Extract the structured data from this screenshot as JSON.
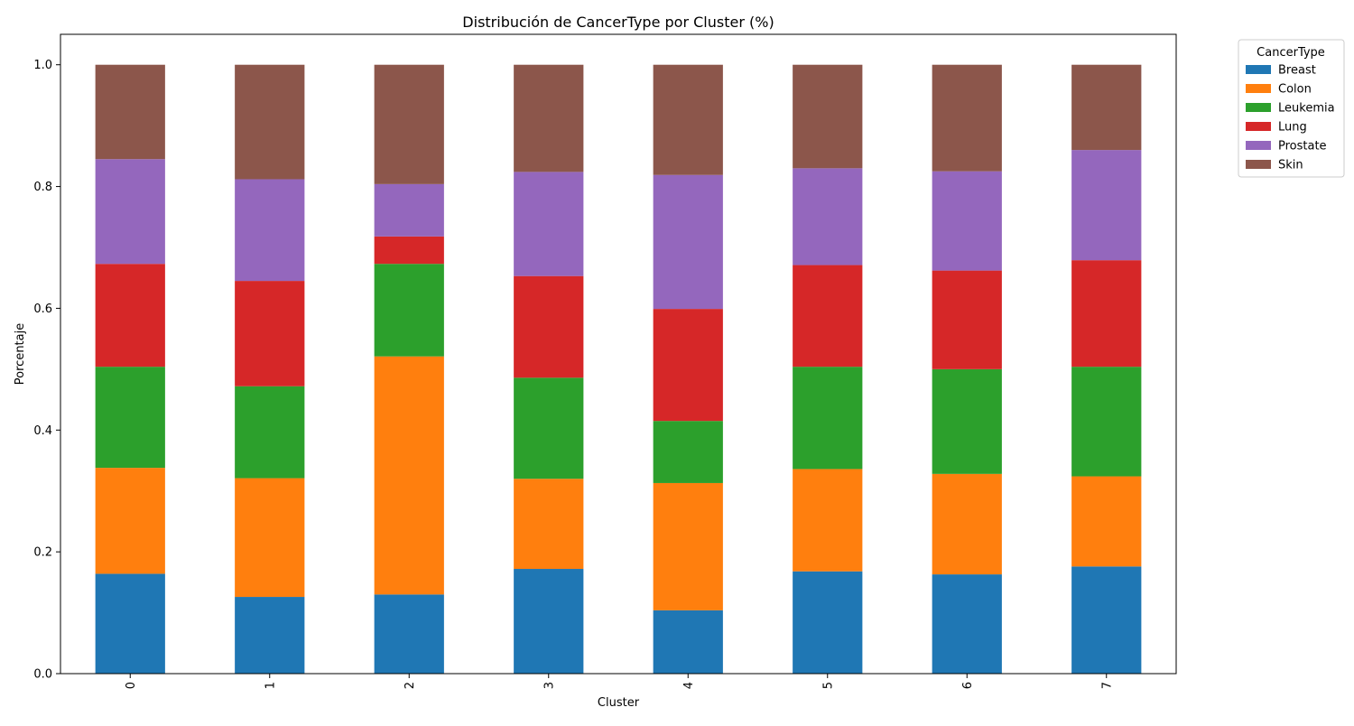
{
  "chart_data": {
    "type": "bar",
    "stacked": true,
    "title": "Distribución de CancerType por Cluster (%)",
    "xlabel": "Cluster",
    "ylabel": "Porcentaje",
    "ylim": [
      0,
      1.05
    ],
    "yticks": [
      "0.0",
      "0.2",
      "0.4",
      "0.6",
      "0.8",
      "1.0"
    ],
    "categories": [
      "0",
      "1",
      "2",
      "3",
      "4",
      "5",
      "6",
      "7"
    ],
    "legend": {
      "title": "CancerType",
      "placement": "outside-top-right"
    },
    "grid": false,
    "series": [
      {
        "name": "Breast",
        "color": "#1f77b4",
        "values": [
          0.164,
          0.126,
          0.13,
          0.172,
          0.104,
          0.168,
          0.163,
          0.176
        ]
      },
      {
        "name": "Colon",
        "color": "#ff7f0e",
        "values": [
          0.174,
          0.195,
          0.391,
          0.148,
          0.209,
          0.168,
          0.165,
          0.148
        ]
      },
      {
        "name": "Leukemia",
        "color": "#2ca02c",
        "values": [
          0.166,
          0.151,
          0.152,
          0.166,
          0.102,
          0.168,
          0.172,
          0.18
        ]
      },
      {
        "name": "Lung",
        "color": "#d62728",
        "values": [
          0.169,
          0.173,
          0.045,
          0.167,
          0.184,
          0.167,
          0.162,
          0.175
        ]
      },
      {
        "name": "Prostate",
        "color": "#9467bd",
        "values": [
          0.172,
          0.167,
          0.086,
          0.171,
          0.22,
          0.159,
          0.163,
          0.181
        ]
      },
      {
        "name": "Skin",
        "color": "#8c564b",
        "values": [
          0.155,
          0.188,
          0.196,
          0.176,
          0.181,
          0.17,
          0.175,
          0.14
        ]
      }
    ]
  }
}
